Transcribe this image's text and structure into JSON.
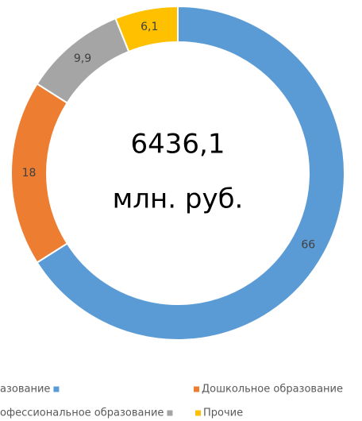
{
  "chart_data": {
    "type": "donut",
    "categories": [
      "азование",
      "Дошкольное образование",
      "офессиональное образование",
      "Прочие"
    ],
    "values": [
      66,
      18,
      9.9,
      6.1
    ],
    "value_labels": [
      "66",
      "18",
      "9,9",
      "6,1"
    ],
    "colors": [
      "#5b9bd5",
      "#ed7d31",
      "#a5a5a5",
      "#ffc000"
    ],
    "center_text": [
      "6436,1",
      "млн. руб."
    ]
  }
}
